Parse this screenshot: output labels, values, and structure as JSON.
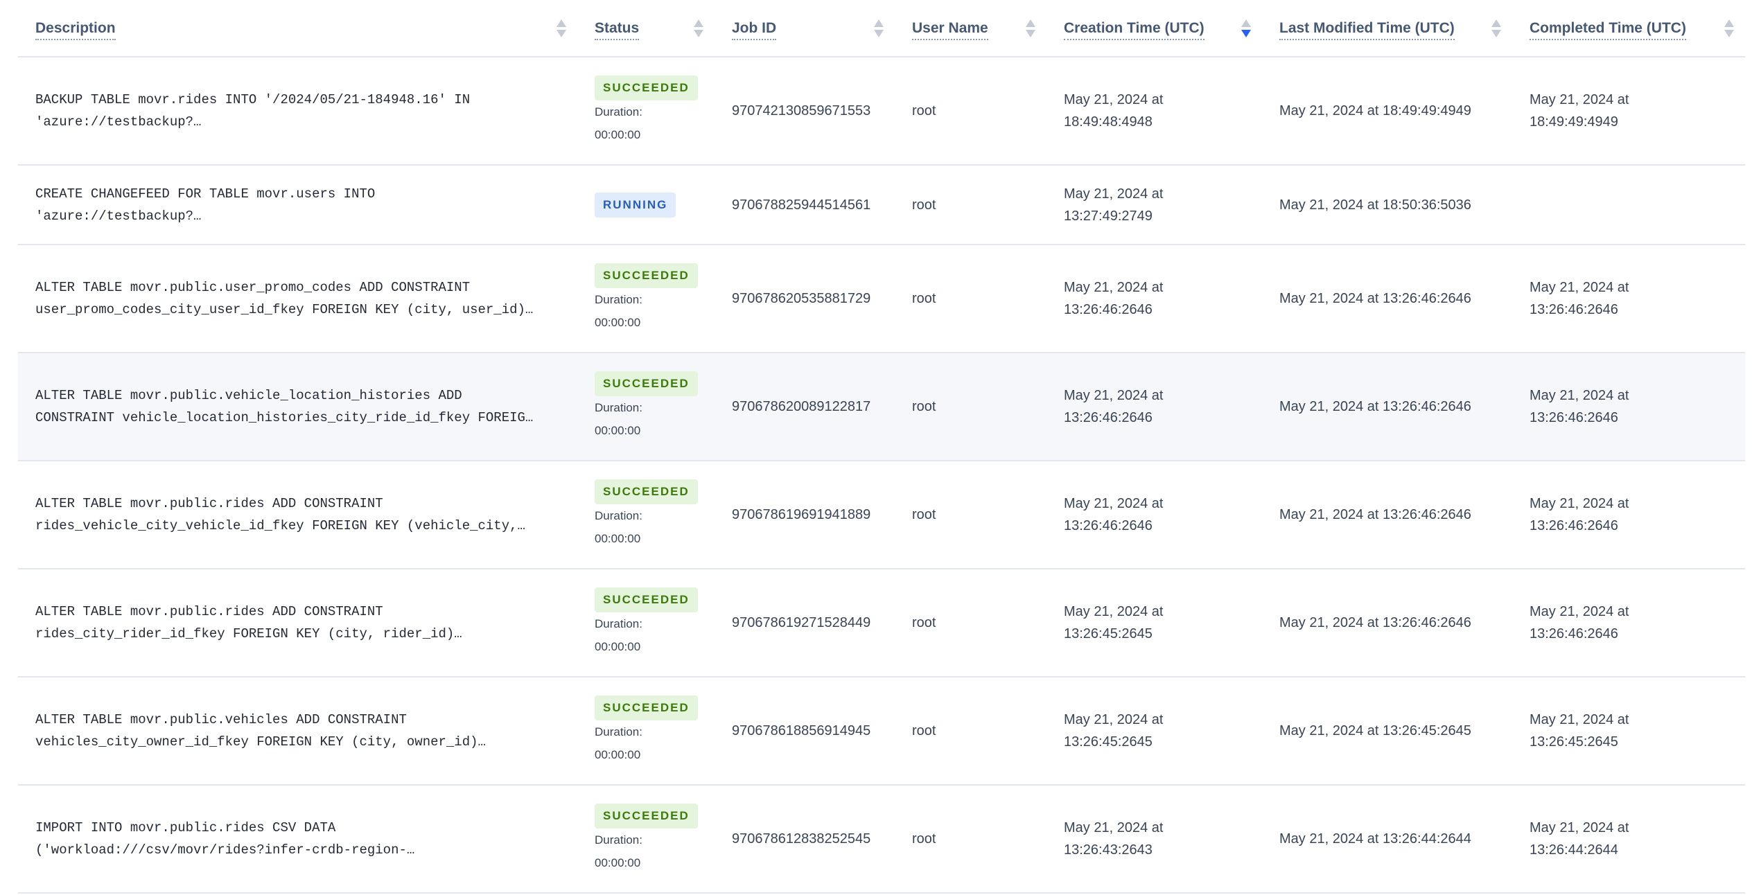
{
  "columns": [
    {
      "label": "Description",
      "sort": "none"
    },
    {
      "label": "Status",
      "sort": "none"
    },
    {
      "label": "Job ID",
      "sort": "none"
    },
    {
      "label": "User Name",
      "sort": "none"
    },
    {
      "label": "Creation Time (UTC)",
      "sort": "descending"
    },
    {
      "label": "Last Modified Time (UTC)",
      "sort": "none"
    },
    {
      "label": "Completed Time (UTC)",
      "sort": "none"
    }
  ],
  "duration_label": "Duration:",
  "colors": {
    "succeeded_bg": "#e5f4dc",
    "succeeded_text": "#3d7a0c",
    "running_bg": "#e0ecfb",
    "running_text": "#2a5cb5",
    "sort_active": "#2a5ef5"
  },
  "rows": [
    {
      "desc1": "BACKUP TABLE movr.rides INTO '/2024/05/21-184948.16' IN",
      "desc2": "'azure://testbackup?…",
      "status": "SUCCEEDED",
      "duration": "00:00:00",
      "job_id": "970742130859671553",
      "user": "root",
      "created1": "May 21, 2024 at",
      "created2": "18:49:48:4948",
      "modified": "May 21, 2024 at 18:49:49:4949",
      "completed1": "May 21, 2024 at",
      "completed2": "18:49:49:4949"
    },
    {
      "desc1": "CREATE CHANGEFEED FOR TABLE movr.users INTO",
      "desc2": "'azure://testbackup?…",
      "status": "RUNNING",
      "job_id": "970678825944514561",
      "user": "root",
      "created1": "May 21, 2024 at",
      "created2": "13:27:49:2749",
      "modified": "May 21, 2024 at 18:50:36:5036"
    },
    {
      "desc1": "ALTER TABLE movr.public.user_promo_codes ADD CONSTRAINT",
      "desc2": "user_promo_codes_city_user_id_fkey FOREIGN KEY (city, user_id)…",
      "status": "SUCCEEDED",
      "duration": "00:00:00",
      "job_id": "970678620535881729",
      "user": "root",
      "created1": "May 21, 2024 at",
      "created2": "13:26:46:2646",
      "modified": "May 21, 2024 at 13:26:46:2646",
      "completed1": "May 21, 2024 at",
      "completed2": "13:26:46:2646"
    },
    {
      "desc1": "ALTER TABLE movr.public.vehicle_location_histories ADD",
      "desc2": "CONSTRAINT vehicle_location_histories_city_ride_id_fkey FOREIG…",
      "status": "SUCCEEDED",
      "duration": "00:00:00",
      "job_id": "970678620089122817",
      "user": "root",
      "created1": "May 21, 2024 at",
      "created2": "13:26:46:2646",
      "modified": "May 21, 2024 at 13:26:46:2646",
      "completed1": "May 21, 2024 at",
      "completed2": "13:26:46:2646"
    },
    {
      "desc1": "ALTER TABLE movr.public.rides ADD CONSTRAINT",
      "desc2": "rides_vehicle_city_vehicle_id_fkey FOREIGN KEY (vehicle_city,…",
      "status": "SUCCEEDED",
      "duration": "00:00:00",
      "job_id": "970678619691941889",
      "user": "root",
      "created1": "May 21, 2024 at",
      "created2": "13:26:46:2646",
      "modified": "May 21, 2024 at 13:26:46:2646",
      "completed1": "May 21, 2024 at",
      "completed2": "13:26:46:2646"
    },
    {
      "desc1": "ALTER TABLE movr.public.rides ADD CONSTRAINT",
      "desc2": "rides_city_rider_id_fkey FOREIGN KEY (city, rider_id)…",
      "status": "SUCCEEDED",
      "duration": "00:00:00",
      "job_id": "970678619271528449",
      "user": "root",
      "created1": "May 21, 2024 at",
      "created2": "13:26:45:2645",
      "modified": "May 21, 2024 at 13:26:46:2646",
      "completed1": "May 21, 2024 at",
      "completed2": "13:26:46:2646"
    },
    {
      "desc1": "ALTER TABLE movr.public.vehicles ADD CONSTRAINT",
      "desc2": "vehicles_city_owner_id_fkey FOREIGN KEY (city, owner_id)…",
      "status": "SUCCEEDED",
      "duration": "00:00:00",
      "job_id": "970678618856914945",
      "user": "root",
      "created1": "May 21, 2024 at",
      "created2": "13:26:45:2645",
      "modified": "May 21, 2024 at 13:26:45:2645",
      "completed1": "May 21, 2024 at",
      "completed2": "13:26:45:2645"
    },
    {
      "desc1": "IMPORT INTO movr.public.rides CSV DATA",
      "desc2": "('workload:///csv/movr/rides?infer-crdb-region-…",
      "status": "SUCCEEDED",
      "duration": "00:00:00",
      "job_id": "970678612838252545",
      "user": "root",
      "created1": "May 21, 2024 at",
      "created2": "13:26:43:2643",
      "modified": "May 21, 2024 at 13:26:44:2644",
      "completed1": "May 21, 2024 at",
      "completed2": "13:26:44:2644"
    }
  ]
}
